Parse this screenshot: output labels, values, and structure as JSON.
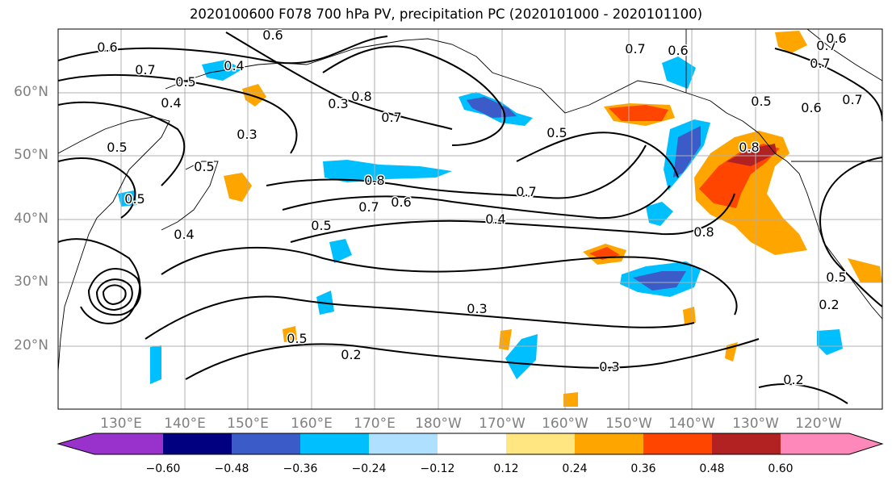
{
  "title": "2020100600 F078 700 hPa PV, precipitation PC (2020101000 - 2020101100)",
  "lat_labels": [
    "60°N",
    "50°N",
    "40°N",
    "30°N",
    "20°N"
  ],
  "lon_labels": [
    "130°E",
    "140°E",
    "150°E",
    "160°E",
    "170°E",
    "180°W",
    "170°W",
    "160°W",
    "150°W",
    "140°W",
    "130°W",
    "120°W"
  ],
  "colorbar": {
    "ticks": [
      "−0.60",
      "−0.48",
      "−0.36",
      "−0.24",
      "−0.12",
      "0.12",
      "0.24",
      "0.36",
      "0.48",
      "0.60"
    ],
    "colors": [
      "#9932cc",
      "#000080",
      "#3a5bc8",
      "#00bfff",
      "#b0e0ff",
      "#ffffff",
      "#ffe680",
      "#ffa500",
      "#ff4500",
      "#b22222",
      "#ff88bb"
    ]
  },
  "contour_labels": [
    "0.6",
    "0.6",
    "0.7",
    "0.5",
    "0.4",
    "0.4",
    "0.5",
    "0.3",
    "0.5",
    "0.5",
    "0.3",
    "0.6",
    "0.8",
    "0.8",
    "0.7",
    "0.7",
    "0.6",
    "0.5",
    "0.4",
    "0.3",
    "0.5",
    "0.2",
    "0.3",
    "0.8",
    "0.7",
    "0.5",
    "0.6",
    "0.7",
    "0.2",
    "0.2",
    "0.5",
    "0.8",
    "0.7",
    "0.7",
    "0.6",
    "0.5",
    "0.4",
    "0.7"
  ]
}
